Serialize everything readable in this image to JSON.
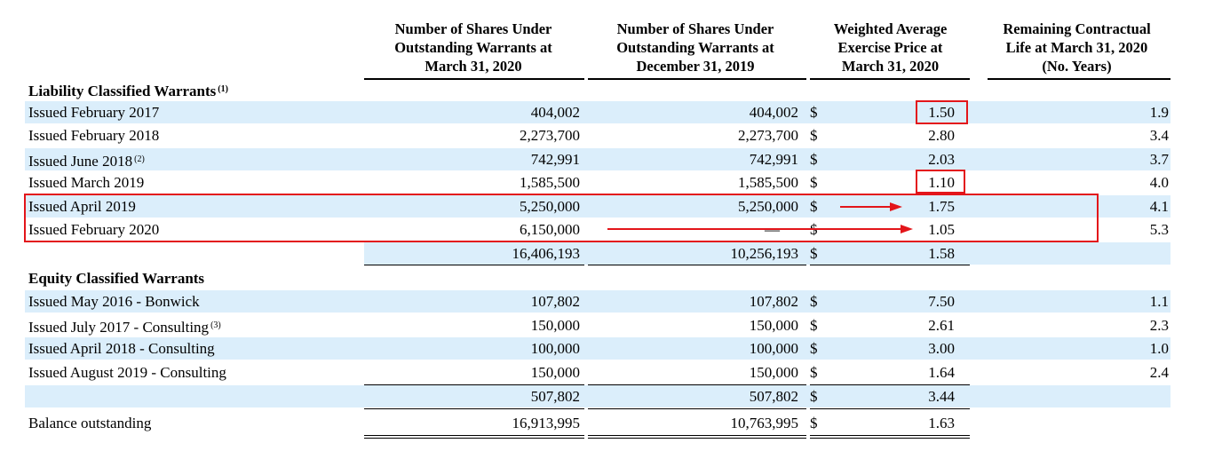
{
  "headers": {
    "col1": [
      "Number of Shares Under",
      "Outstanding Warrants at",
      "March 31, 2020"
    ],
    "col2": [
      "Number of Shares Under",
      "Outstanding Warrants at",
      "December 31, 2019"
    ],
    "col3": [
      "Weighted Average",
      "Exercise Price at",
      "March 31, 2020"
    ],
    "col4": [
      "Remaining Contractual",
      "Life at March 31, 2020",
      "(No. Years)"
    ]
  },
  "currency_symbol": "$",
  "liability": {
    "title": "Liability Classified Warrants",
    "title_note": "(1)",
    "rows": [
      {
        "label": "Issued February 2017",
        "note": "",
        "shares_2020": "404,002",
        "shares_2019": "404,002",
        "price": "1.50",
        "life": "1.9"
      },
      {
        "label": "Issued February 2018",
        "note": "",
        "shares_2020": "2,273,700",
        "shares_2019": "2,273,700",
        "price": "2.80",
        "life": "3.4"
      },
      {
        "label": "Issued June 2018",
        "note": "(2)",
        "shares_2020": "742,991",
        "shares_2019": "742,991",
        "price": "2.03",
        "life": "3.7"
      },
      {
        "label": "Issued March 2019",
        "note": "",
        "shares_2020": "1,585,500",
        "shares_2019": "1,585,500",
        "price": "1.10",
        "life": "4.0"
      },
      {
        "label": "Issued April 2019",
        "note": "",
        "shares_2020": "5,250,000",
        "shares_2019": "5,250,000",
        "price": "1.75",
        "life": "4.1"
      },
      {
        "label": "Issued February 2020",
        "note": "",
        "shares_2020": "6,150,000",
        "shares_2019": "—",
        "price": "1.05",
        "life": "5.3"
      }
    ],
    "subtotal": {
      "shares_2020": "16,406,193",
      "shares_2019": "10,256,193",
      "price": "1.58"
    }
  },
  "equity": {
    "title": "Equity Classified Warrants",
    "rows": [
      {
        "label": "Issued May 2016 - Bonwick",
        "note": "",
        "shares_2020": "107,802",
        "shares_2019": "107,802",
        "price": "7.50",
        "life": "1.1"
      },
      {
        "label": "Issued July 2017 - Consulting",
        "note": "(3)",
        "shares_2020": "150,000",
        "shares_2019": "150,000",
        "price": "2.61",
        "life": "2.3"
      },
      {
        "label": "Issued April 2018 - Consulting",
        "note": "",
        "shares_2020": "100,000",
        "shares_2019": "100,000",
        "price": "3.00",
        "life": "1.0"
      },
      {
        "label": "Issued August 2019 - Consulting",
        "note": "",
        "shares_2020": "150,000",
        "shares_2019": "150,000",
        "price": "1.64",
        "life": "2.4"
      }
    ],
    "subtotal": {
      "shares_2020": "507,802",
      "shares_2019": "507,802",
      "price": "3.44"
    }
  },
  "balance": {
    "label": "Balance outstanding",
    "shares_2020": "16,913,995",
    "shares_2019": "10,763,995",
    "price": "1.63"
  },
  "annotation_color": "#e3151a"
}
